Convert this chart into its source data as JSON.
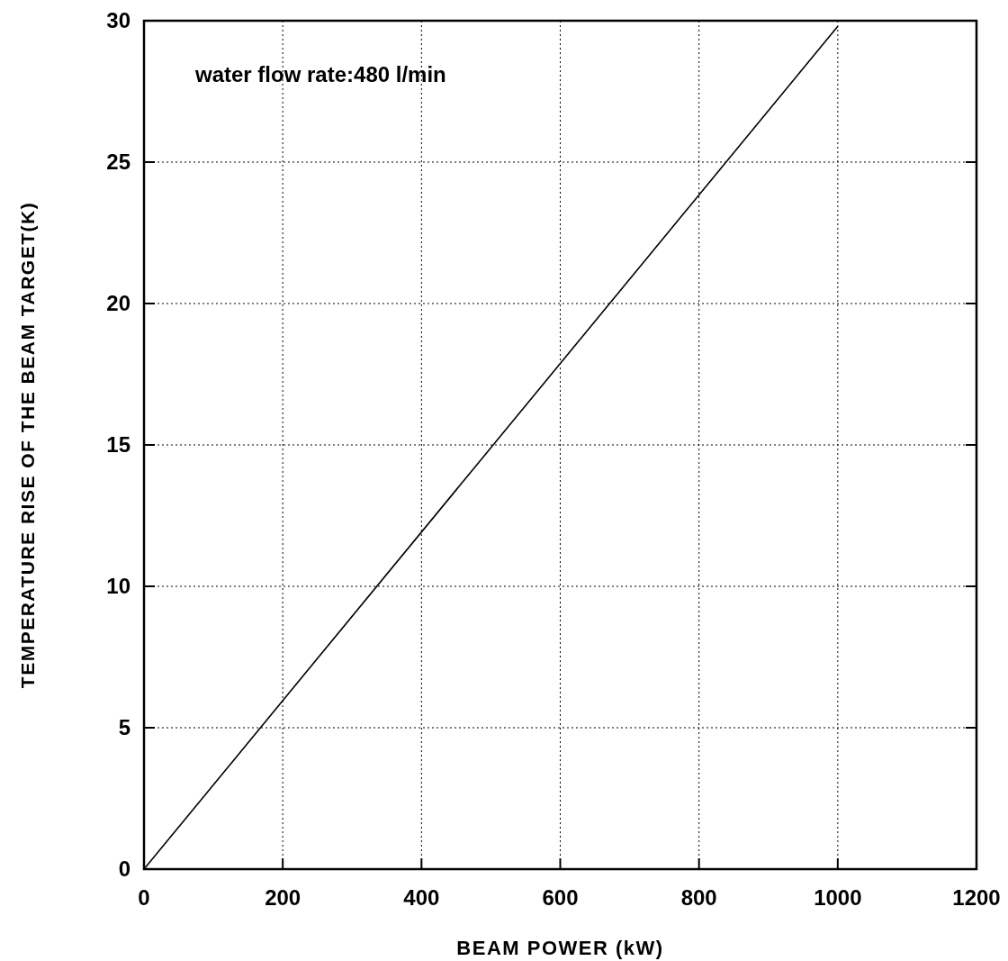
{
  "chart_data": {
    "type": "line",
    "xlabel": "BEAM POWER (kW)",
    "ylabel": "TEMPERATURE RISE OF THE BEAM TARGET(K)",
    "annotations": [
      "water flow rate:480 l/min"
    ],
    "x": [
      0,
      1000
    ],
    "series": [
      {
        "color": "#000000",
        "values": [
          0,
          29.8
        ]
      }
    ],
    "xlim": [
      0,
      1200
    ],
    "xticks": [
      0,
      200,
      400,
      600,
      800,
      1000,
      1200
    ],
    "ylim": [
      0,
      30
    ],
    "yticks": [
      0,
      5,
      10,
      15,
      20,
      25,
      30
    ],
    "grid": true,
    "marker": "none",
    "line_style": "solid"
  }
}
